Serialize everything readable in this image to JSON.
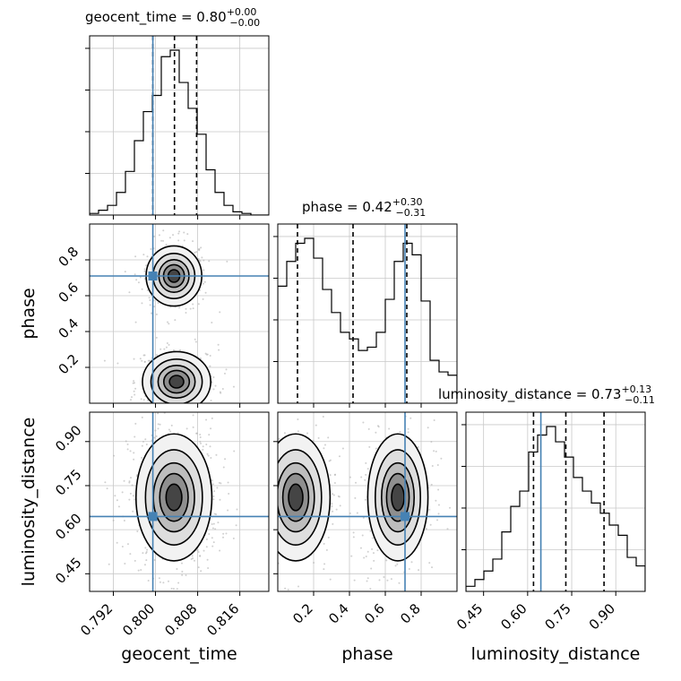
{
  "colors": {
    "truth": "#4682b4",
    "hist": "#000000",
    "grid": "#c8c8c8",
    "scatter": "#b0b0b0"
  },
  "chart_data": {
    "type": "corner",
    "parameters": [
      "geocent_time",
      "phase",
      "luminosity_distance"
    ],
    "truths": [
      0.7995,
      0.71,
      0.645
    ],
    "ranges": [
      [
        0.7875,
        0.8215
      ],
      [
        0.0,
        1.0
      ],
      [
        0.39,
        1.0
      ]
    ],
    "ticks": [
      {
        "values": [
          0.792,
          0.8,
          0.808,
          0.816
        ],
        "labels": [
          "0.792",
          "0.800",
          "0.808",
          "0.816"
        ]
      },
      {
        "values": [
          0.2,
          0.4,
          0.6,
          0.8
        ],
        "labels": [
          "0.2",
          "0.4",
          "0.6",
          "0.8"
        ]
      },
      {
        "values": [
          0.45,
          0.6,
          0.75,
          0.9
        ],
        "labels": [
          "0.45",
          "0.60",
          "0.75",
          "0.90"
        ]
      }
    ],
    "titles": [
      {
        "text": "geocent_time = 0.80",
        "plus": "+0.00",
        "minus": "−0.00"
      },
      {
        "text": "phase = 0.42",
        "plus": "+0.30",
        "minus": "−0.31"
      },
      {
        "text": "luminosity_distance = 0.73",
        "plus": "+0.13",
        "minus": "−0.11"
      }
    ],
    "quantiles": [
      [
        0.7995,
        0.8036,
        0.8078
      ],
      [
        0.11,
        0.42,
        0.72
      ],
      [
        0.62,
        0.73,
        0.86
      ]
    ],
    "histograms": [
      {
        "edges_start": 0.7875,
        "bin_width": 0.0017,
        "counts": [
          1,
          3,
          6,
          14,
          27,
          46,
          64,
          74,
          98,
          102,
          82,
          66,
          50,
          28,
          14,
          6,
          2,
          1,
          0,
          0
        ]
      },
      {
        "edges_start": 0.0,
        "bin_width": 0.05,
        "counts": [
          71,
          86,
          97,
          100,
          88,
          69,
          55,
          43,
          39,
          32,
          34,
          43,
          63,
          86,
          97,
          90,
          62,
          26,
          19,
          17
        ]
      },
      {
        "edges_start": 0.39,
        "bin_width": 0.0305,
        "counts": [
          3,
          7,
          12,
          19,
          35,
          50,
          59,
          82,
          92,
          97,
          88,
          79,
          67,
          59,
          52,
          46,
          39,
          33,
          20,
          15
        ]
      }
    ],
    "density_modes": {
      "phase_vs_geocent_time": [
        {
          "x": 0.8035,
          "y": 0.71,
          "sx": 0.0022,
          "sy": 0.07,
          "w": 1.0
        },
        {
          "x": 0.804,
          "y": 0.12,
          "sx": 0.0027,
          "sy": 0.07,
          "w": 1.0
        }
      ],
      "luminosity_distance_vs_geocent_time": [
        {
          "x": 0.8035,
          "y": 0.71,
          "sx": 0.003,
          "sy": 0.09,
          "w": 1.0
        }
      ],
      "luminosity_distance_vs_phase": [
        {
          "x": 0.1,
          "y": 0.71,
          "sx": 0.08,
          "sy": 0.09,
          "w": 1.0
        },
        {
          "x": 0.67,
          "y": 0.71,
          "sx": 0.07,
          "sy": 0.09,
          "w": 1.0
        }
      ]
    }
  }
}
